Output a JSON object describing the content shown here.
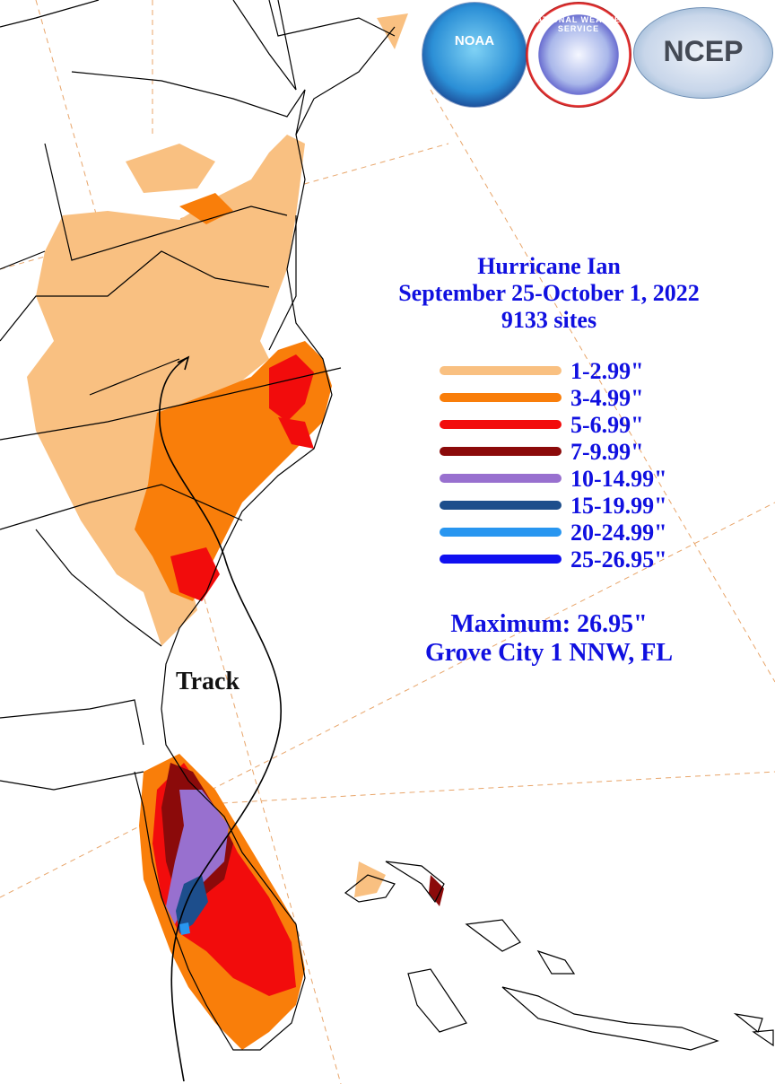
{
  "title": {
    "event": "Hurricane Ian",
    "dates": "September 25-October 1, 2022",
    "sites": "9133 sites"
  },
  "legend": [
    {
      "label": "1-2.99\"",
      "color": "#f9c081"
    },
    {
      "label": "3-4.99\"",
      "color": "#f97e0a"
    },
    {
      "label": "5-6.99\"",
      "color": "#f20c0c"
    },
    {
      "label": "7-9.99\"",
      "color": "#8b0a0a"
    },
    {
      "label": "10-14.99\"",
      "color": "#9870cf"
    },
    {
      "label": "15-19.99\"",
      "color": "#1d4e8c"
    },
    {
      "label": "20-24.99\"",
      "color": "#2896f0"
    },
    {
      "label": "25-26.95\"",
      "color": "#1010f0"
    }
  ],
  "maximum": {
    "line1": "Maximum:  26.95\"",
    "line2": "Grove City 1 NNW, FL"
  },
  "track_label": "Track",
  "logos": {
    "noaa": "NOAA",
    "nws": "NATIONAL WEATHER SERVICE",
    "ncep": "NCEP"
  },
  "colors": {
    "text": "#1010e0",
    "graticule": "#e8a56a",
    "border": "#000000"
  }
}
